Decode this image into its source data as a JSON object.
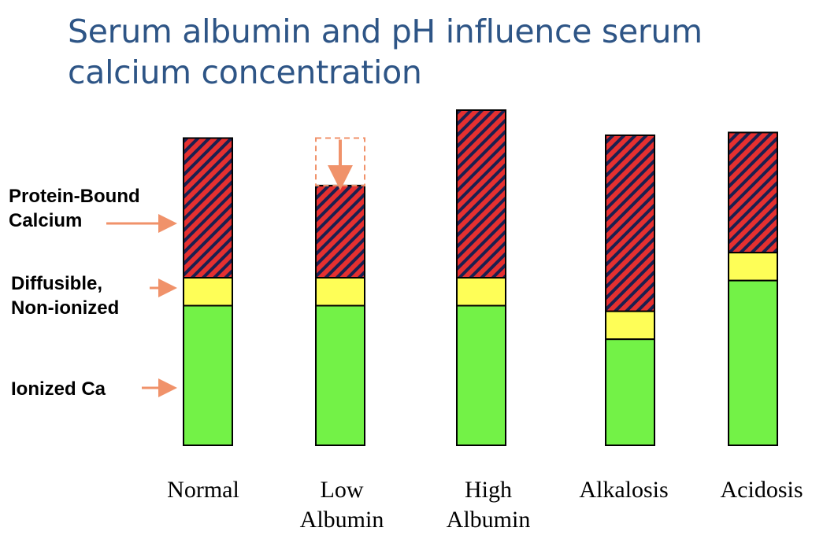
{
  "title": {
    "line1": "Serum albumin and pH influence serum",
    "line2": "calcium concentration"
  },
  "legend": {
    "protein_bound": {
      "line1": "Protein-Bound",
      "line2": "Calcium"
    },
    "diffusible": {
      "line1": "Diffusible,",
      "line2": "Non-ionized"
    },
    "ionized": "Ionized Ca"
  },
  "colors": {
    "ionized": "#73f247",
    "diffusible": "#fefe57",
    "protein_bound": "#e53030",
    "hatch": "#1a2050",
    "arrow": "#f0926a"
  },
  "chart_data": {
    "type": "bar",
    "stacked": true,
    "categories": [
      "Normal",
      "Low Albumin",
      "High Albumin",
      "Alkalosis",
      "Acidosis"
    ],
    "category_lines": [
      [
        "Normal"
      ],
      [
        "Low",
        "Albumin"
      ],
      [
        "High",
        "Albumin"
      ],
      [
        "Alkalosis"
      ],
      [
        "Acidosis"
      ]
    ],
    "series": [
      {
        "name": "Ionized Ca",
        "values": [
          50,
          50,
          50,
          38,
          59
        ]
      },
      {
        "name": "Diffusible, Non-ionized",
        "values": [
          10,
          10,
          10,
          10,
          10
        ]
      },
      {
        "name": "Protein-Bound Calcium",
        "values": [
          50,
          33,
          60,
          63,
          43
        ]
      }
    ],
    "annotations": [
      {
        "category": "Low Albumin",
        "type": "dashed-box-down-arrow",
        "from": 110,
        "to": 93
      }
    ]
  }
}
